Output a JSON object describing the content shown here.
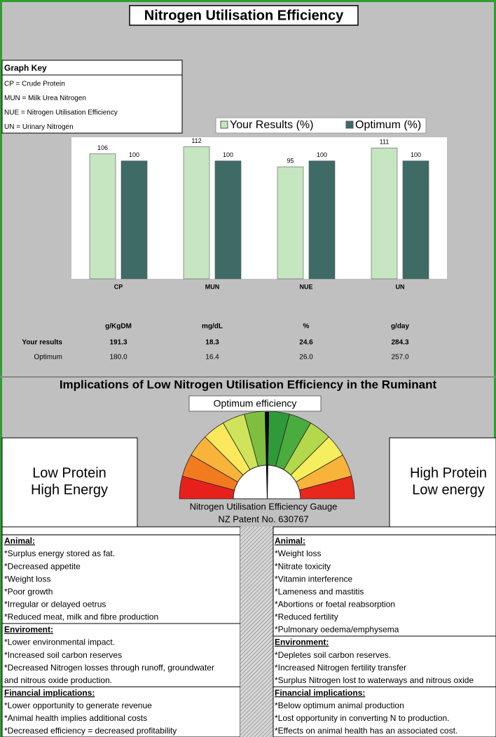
{
  "title": "Nitrogen Utilisation Efficiency",
  "graph_key": {
    "heading": "Graph Key",
    "items": [
      "CP = Crude Protein",
      "MUN = Milk Urea Nitrogen",
      "NUE = Nitrogen Utilisation Efficiency",
      "UN = Urinary Nitrogen"
    ]
  },
  "chart_data": {
    "type": "bar",
    "categories": [
      "CP",
      "MUN",
      "NUE",
      "UN"
    ],
    "series": [
      {
        "name": "Your Results (%)",
        "color": "#c6e6c1",
        "values": [
          106,
          112,
          95,
          111
        ]
      },
      {
        "name": "Optimum (%)",
        "color": "#3e6b66",
        "values": [
          100,
          100,
          100,
          100
        ]
      }
    ],
    "ylim": [
      0,
      120
    ]
  },
  "results_table": {
    "units": [
      "g/KgDM",
      "mg/dL",
      "%",
      "g/day"
    ],
    "rows": [
      {
        "label": "Your results",
        "values": [
          "191.3",
          "18.3",
          "24.6",
          "284.3"
        ]
      },
      {
        "label": "Optimum",
        "values": [
          "180.0",
          "16.4",
          "26.0",
          "257.0"
        ]
      }
    ]
  },
  "implications_heading": "Implications of Low Nitrogen Utilisation Efficiency in the Ruminant",
  "gauge": {
    "header": "Optimum   efficiency",
    "caption": [
      "Nitrogen Utilisation Efficiency Gauge",
      "NZ Patent No. 630767"
    ]
  },
  "left_label": [
    "Low Protein",
    "High Energy"
  ],
  "right_label": [
    "High Protein",
    "Low energy"
  ],
  "low_panel": {
    "sections": [
      {
        "heading": "Animal:",
        "lines": [
          "*Surplus energy stored as fat.",
          "*Decreased appetite",
          "*Weight loss",
          "*Poor growth",
          "*Irregular or delayed oetrus",
          "*Reduced meat, milk and fibre production"
        ]
      },
      {
        "heading": "Enviroment:",
        "lines": [
          "*Lower environmental impact.",
          "*Increased soil carbon reserves",
          "*Decreased Nitrogen losses through runoff, groundwater",
          "and nitrous oxide production."
        ]
      },
      {
        "heading": "Financial implications:",
        "lines": [
          "*Lower opportunity to generate revenue",
          "*Animal health implies additional costs",
          "*Decreased efficiency = decreased profitability"
        ]
      }
    ]
  },
  "high_panel": {
    "sections": [
      {
        "heading": "Animal:",
        "lines": [
          "*Weight loss",
          "*Nitrate toxicity",
          "*Vitamin interference",
          "*Lameness and mastitis",
          "*Abortions or foetal reabsorption",
          "*Reduced fertility",
          "*Pulmonary oedema/emphysema"
        ]
      },
      {
        "heading": "Environment:",
        "lines": [
          "*Depletes soil carbon reserves.",
          "*Increased Nitrogen fertility transfer",
          "*Surplus Nitrogen lost to waterways and nitrous oxide"
        ]
      },
      {
        "heading": "Financial implications:",
        "lines": [
          "*Below optimum animal production",
          "*Lost opportunity in converting N to production.",
          "*Effects on animal health has an associated cost."
        ]
      }
    ]
  }
}
